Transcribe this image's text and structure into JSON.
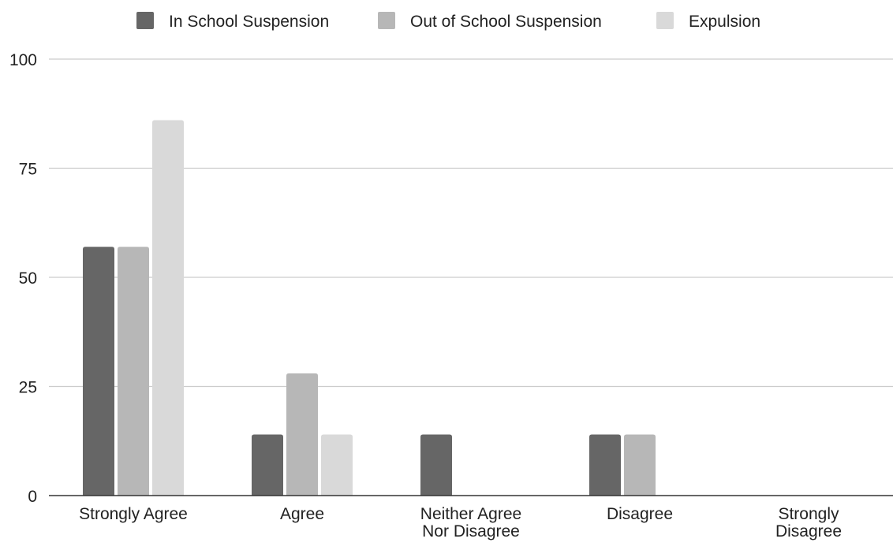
{
  "chart_data": {
    "type": "bar",
    "categories": [
      [
        "Strongly Agree"
      ],
      [
        "Agree"
      ],
      [
        "Neither Agree",
        "Nor Disagree"
      ],
      [
        "Disagree"
      ],
      [
        "Strongly",
        "Disagree"
      ]
    ],
    "series": [
      {
        "name": "In School Suspension",
        "color": "#666666",
        "values": [
          57,
          14,
          14,
          14,
          0
        ]
      },
      {
        "name": "Out of School Suspension",
        "color": "#b7b7b7",
        "values": [
          57,
          28,
          0,
          14,
          0
        ]
      },
      {
        "name": "Expulsion",
        "color": "#d9d9d9",
        "values": [
          86,
          14,
          0,
          0,
          0
        ]
      }
    ],
    "yticks": [
      "0",
      "25",
      "50",
      "75",
      "100"
    ],
    "ylim": [
      0,
      100
    ],
    "grid": true,
    "legend_position": "top-center",
    "title": "",
    "xlabel": "",
    "ylabel": ""
  }
}
